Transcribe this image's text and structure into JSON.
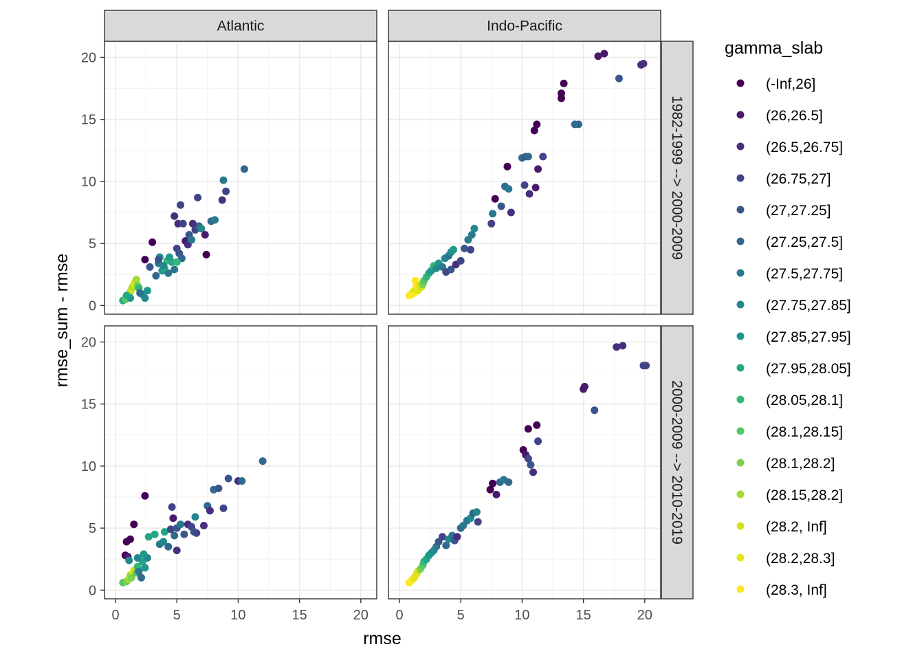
{
  "chart_data": {
    "type": "scatter",
    "xlabel": "rmse",
    "ylabel": "rmse_sum - rmse",
    "xlim": [
      -0.9,
      21.3
    ],
    "ylim": [
      -0.7,
      21.3
    ],
    "xticks": [
      0,
      5,
      10,
      15,
      20
    ],
    "yticks": [
      0,
      5,
      10,
      15,
      20
    ],
    "grid": true,
    "legend_position": "right",
    "column_facets": [
      "Atlantic",
      "Indo-Pacific"
    ],
    "row_facets": [
      "1982-1999 --> 2000-2009",
      "2000-2009 --> 2010-2019"
    ],
    "legend": {
      "title": "gamma_slab",
      "entries": [
        {
          "label": "(-Inf,26]",
          "color": "#440154"
        },
        {
          "label": "(26,26.5]",
          "color": "#481A6C"
        },
        {
          "label": "(26.5,26.75]",
          "color": "#472F7D"
        },
        {
          "label": "(26.75,27]",
          "color": "#414487"
        },
        {
          "label": "(27,27.25]",
          "color": "#39568C"
        },
        {
          "label": "(27.25,27.5]",
          "color": "#31688E"
        },
        {
          "label": "(27.5,27.75]",
          "color": "#2A788E"
        },
        {
          "label": "(27.75,27.85]",
          "color": "#23888E"
        },
        {
          "label": "(27.85,27.95]",
          "color": "#1F988B"
        },
        {
          "label": "(27.95,28.05]",
          "color": "#22A884"
        },
        {
          "label": "(28.05,28.1]",
          "color": "#35B779"
        },
        {
          "label": "(28.1,28.15]",
          "color": "#54C568"
        },
        {
          "label": "(28.1,28.2]",
          "color": "#7AD151"
        },
        {
          "label": "(28.15,28.2]",
          "color": "#A5DB36"
        },
        {
          "label": "(28.2, Inf]",
          "color": "#D2E21B"
        },
        {
          "label": "(28.2,28.3]",
          "color": "#E4E419"
        },
        {
          "label": "(28.3, Inf]",
          "color": "#FDE725"
        }
      ]
    },
    "panels": [
      {
        "column": "Atlantic",
        "row": "1982-1999 --> 2000-2009",
        "points": [
          [
            0.6,
            0.4,
            9
          ],
          [
            0.8,
            0.5,
            11
          ],
          [
            1.0,
            0.7,
            12
          ],
          [
            1.1,
            0.9,
            13
          ],
          [
            1.2,
            1.1,
            13
          ],
          [
            1.3,
            1.3,
            14
          ],
          [
            1.4,
            1.5,
            13
          ],
          [
            1.5,
            1.7,
            14
          ],
          [
            1.6,
            1.9,
            14
          ],
          [
            1.7,
            2.1,
            13
          ],
          [
            1.8,
            1.6,
            12
          ],
          [
            1.9,
            1.4,
            10
          ],
          [
            1.2,
            0.6,
            8
          ],
          [
            0.9,
            0.8,
            9
          ],
          [
            2.0,
            1.0,
            5
          ],
          [
            2.2,
            0.9,
            6
          ],
          [
            2.4,
            0.6,
            7
          ],
          [
            2.6,
            1.2,
            8
          ],
          [
            2.4,
            3.7,
            0
          ],
          [
            3.0,
            5.1,
            0
          ],
          [
            2.8,
            3.1,
            4
          ],
          [
            3.3,
            2.4,
            5
          ],
          [
            3.5,
            3.4,
            6
          ],
          [
            3.6,
            3.9,
            7
          ],
          [
            3.8,
            2.8,
            8
          ],
          [
            4.0,
            3.0,
            9
          ],
          [
            4.2,
            3.6,
            10
          ],
          [
            4.3,
            2.6,
            6
          ],
          [
            3.5,
            3.7,
            4
          ],
          [
            3.9,
            3.2,
            7
          ],
          [
            4.4,
            3.9,
            8
          ],
          [
            4.6,
            3.5,
            9
          ],
          [
            4.8,
            2.9,
            6
          ],
          [
            5.0,
            4.6,
            3
          ],
          [
            5.2,
            4.2,
            4
          ],
          [
            5.4,
            3.8,
            5
          ],
          [
            5.1,
            6.6,
            2
          ],
          [
            5.3,
            8.1,
            3
          ],
          [
            5.7,
            5.2,
            1
          ],
          [
            5.9,
            4.9,
            2
          ],
          [
            4.8,
            7.2,
            2
          ],
          [
            5.5,
            6.6,
            3
          ],
          [
            6.0,
            5.7,
            4
          ],
          [
            6.2,
            5.3,
            6
          ],
          [
            6.5,
            6.1,
            3
          ],
          [
            6.8,
            6.4,
            5
          ],
          [
            6.7,
            8.7,
            3
          ],
          [
            7.0,
            6.2,
            7
          ],
          [
            7.3,
            5.7,
            1
          ],
          [
            7.4,
            4.1,
            0
          ],
          [
            6.3,
            6.6,
            2
          ],
          [
            7.8,
            6.8,
            5
          ],
          [
            8.1,
            6.9,
            6
          ],
          [
            8.7,
            8.5,
            2
          ],
          [
            8.8,
            10.1,
            6
          ],
          [
            9.0,
            9.2,
            3
          ],
          [
            10.5,
            11.0,
            5
          ],
          [
            5.0,
            3.5,
            10
          ]
        ]
      },
      {
        "column": "Indo-Pacific",
        "row": "1982-1999 --> 2000-2009",
        "points": [
          [
            0.8,
            0.8,
            16
          ],
          [
            1.0,
            0.9,
            16
          ],
          [
            1.1,
            1.1,
            15
          ],
          [
            1.2,
            1.0,
            16
          ],
          [
            1.3,
            1.3,
            14
          ],
          [
            1.4,
            1.6,
            16
          ],
          [
            1.5,
            1.2,
            15
          ],
          [
            1.3,
            2.0,
            16
          ],
          [
            1.6,
            1.7,
            15
          ],
          [
            1.8,
            1.5,
            14
          ],
          [
            1.9,
            1.7,
            12
          ],
          [
            2.0,
            2.0,
            11
          ],
          [
            2.2,
            2.3,
            10
          ],
          [
            2.4,
            2.6,
            9
          ],
          [
            2.6,
            2.8,
            8
          ],
          [
            2.8,
            3.2,
            10
          ],
          [
            3.0,
            3.0,
            7
          ],
          [
            3.2,
            3.4,
            8
          ],
          [
            3.5,
            3.1,
            6
          ],
          [
            3.7,
            3.8,
            7
          ],
          [
            4.0,
            4.0,
            6
          ],
          [
            4.2,
            4.3,
            7
          ],
          [
            4.4,
            4.5,
            8
          ],
          [
            3.8,
            2.7,
            3
          ],
          [
            4.2,
            2.9,
            4
          ],
          [
            4.6,
            3.3,
            2
          ],
          [
            5.0,
            3.6,
            3
          ],
          [
            5.3,
            4.6,
            4
          ],
          [
            5.8,
            4.5,
            3
          ],
          [
            5.6,
            5.3,
            6
          ],
          [
            5.9,
            5.7,
            6
          ],
          [
            6.1,
            6.2,
            7
          ],
          [
            7.5,
            6.6,
            3
          ],
          [
            7.6,
            7.4,
            6
          ],
          [
            7.8,
            8.6,
            0
          ],
          [
            8.3,
            8.0,
            4
          ],
          [
            8.6,
            9.6,
            5
          ],
          [
            8.9,
            9.4,
            6
          ],
          [
            9.1,
            7.5,
            2
          ],
          [
            8.8,
            11.2,
            0
          ],
          [
            10.0,
            11.9,
            5
          ],
          [
            10.3,
            12.0,
            4
          ],
          [
            10.5,
            12.0,
            5
          ],
          [
            10.2,
            9.7,
            3
          ],
          [
            10.6,
            9.0,
            2
          ],
          [
            11.1,
            9.5,
            1
          ],
          [
            11.3,
            11.0,
            1
          ],
          [
            11.0,
            14.1,
            0
          ],
          [
            11.2,
            14.6,
            0
          ],
          [
            11.7,
            12.0,
            3
          ],
          [
            13.2,
            16.7,
            0
          ],
          [
            13.2,
            17.1,
            0
          ],
          [
            13.4,
            17.9,
            0
          ],
          [
            14.3,
            14.6,
            5
          ],
          [
            14.6,
            14.6,
            5
          ],
          [
            16.2,
            20.1,
            1
          ],
          [
            16.7,
            20.3,
            1
          ],
          [
            17.9,
            18.3,
            4
          ],
          [
            19.7,
            19.4,
            2
          ],
          [
            19.9,
            19.5,
            2
          ]
        ]
      },
      {
        "column": "Atlantic",
        "row": "2000-2009 --> 2010-2019",
        "points": [
          [
            0.6,
            0.6,
            11
          ],
          [
            0.9,
            0.7,
            12
          ],
          [
            1.1,
            0.9,
            13
          ],
          [
            1.2,
            1.2,
            13
          ],
          [
            1.4,
            1.3,
            14
          ],
          [
            1.5,
            1.6,
            14
          ],
          [
            1.3,
            1.0,
            12
          ],
          [
            1.7,
            1.4,
            11
          ],
          [
            1.8,
            1.9,
            10
          ],
          [
            2.2,
            2.3,
            9
          ],
          [
            2.4,
            1.8,
            8
          ],
          [
            2.6,
            2.6,
            7
          ],
          [
            1.9,
            1.5,
            6
          ],
          [
            2.1,
            1.0,
            5
          ],
          [
            0.8,
            2.8,
            0
          ],
          [
            1.0,
            2.7,
            1
          ],
          [
            0.9,
            3.9,
            0
          ],
          [
            1.2,
            4.1,
            0
          ],
          [
            1.5,
            5.3,
            0
          ],
          [
            1.1,
            2.4,
            7
          ],
          [
            1.8,
            2.6,
            7
          ],
          [
            2.3,
            2.9,
            8
          ],
          [
            2.4,
            7.6,
            0
          ],
          [
            2.7,
            4.3,
            9
          ],
          [
            3.2,
            4.5,
            9
          ],
          [
            3.6,
            3.7,
            6
          ],
          [
            3.9,
            3.9,
            7
          ],
          [
            4.0,
            4.7,
            9
          ],
          [
            4.3,
            3.5,
            5
          ],
          [
            4.5,
            4.9,
            3
          ],
          [
            4.7,
            5.8,
            1
          ],
          [
            4.8,
            4.4,
            5
          ],
          [
            5.0,
            3.2,
            2
          ],
          [
            5.0,
            5.0,
            4
          ],
          [
            5.3,
            5.3,
            6
          ],
          [
            5.6,
            4.5,
            4
          ],
          [
            5.9,
            5.3,
            2
          ],
          [
            6.2,
            5.1,
            3
          ],
          [
            6.4,
            4.7,
            4
          ],
          [
            6.5,
            5.9,
            7
          ],
          [
            6.6,
            4.6,
            3
          ],
          [
            7.2,
            5.2,
            2
          ],
          [
            7.5,
            6.8,
            5
          ],
          [
            7.7,
            6.4,
            2
          ],
          [
            8.0,
            8.1,
            5
          ],
          [
            8.4,
            8.2,
            4
          ],
          [
            8.8,
            6.6,
            3
          ],
          [
            9.2,
            9.0,
            4
          ],
          [
            10.0,
            8.8,
            2
          ],
          [
            10.3,
            8.8,
            5
          ],
          [
            12.0,
            10.4,
            5
          ],
          [
            4.6,
            6.7,
            3
          ]
        ]
      },
      {
        "column": "Indo-Pacific",
        "row": "2000-2009 --> 2010-2019",
        "points": [
          [
            0.8,
            0.6,
            16
          ],
          [
            1.0,
            0.8,
            16
          ],
          [
            1.2,
            1.0,
            15
          ],
          [
            1.4,
            1.3,
            15
          ],
          [
            1.5,
            1.5,
            14
          ],
          [
            1.7,
            1.7,
            12
          ],
          [
            1.9,
            2.0,
            11
          ],
          [
            2.0,
            2.3,
            10
          ],
          [
            2.2,
            2.5,
            9
          ],
          [
            2.4,
            2.8,
            8
          ],
          [
            2.6,
            3.0,
            8
          ],
          [
            2.8,
            3.2,
            7
          ],
          [
            3.0,
            3.5,
            6
          ],
          [
            3.2,
            3.9,
            4
          ],
          [
            3.5,
            4.3,
            3
          ],
          [
            3.8,
            3.6,
            5
          ],
          [
            4.0,
            4.1,
            7
          ],
          [
            4.3,
            4.4,
            6
          ],
          [
            4.5,
            4.0,
            4
          ],
          [
            4.7,
            4.3,
            2
          ],
          [
            5.0,
            5.0,
            5
          ],
          [
            5.2,
            5.2,
            6
          ],
          [
            5.5,
            5.6,
            6
          ],
          [
            5.8,
            5.8,
            7
          ],
          [
            6.0,
            6.2,
            5
          ],
          [
            6.3,
            6.3,
            7
          ],
          [
            6.4,
            5.5,
            3
          ],
          [
            7.4,
            8.1,
            0
          ],
          [
            7.6,
            8.6,
            0
          ],
          [
            7.9,
            7.7,
            1
          ],
          [
            8.2,
            8.7,
            5
          ],
          [
            8.5,
            8.9,
            6
          ],
          [
            8.9,
            8.7,
            5
          ],
          [
            10.1,
            11.3,
            0
          ],
          [
            10.3,
            10.9,
            1
          ],
          [
            10.5,
            10.6,
            3
          ],
          [
            10.7,
            10.1,
            4
          ],
          [
            10.9,
            9.5,
            2
          ],
          [
            10.5,
            13.0,
            0
          ],
          [
            11.2,
            13.3,
            0
          ],
          [
            11.3,
            12.0,
            3
          ],
          [
            15.0,
            16.2,
            1
          ],
          [
            15.1,
            16.4,
            1
          ],
          [
            15.9,
            14.5,
            4
          ],
          [
            17.7,
            19.6,
            2
          ],
          [
            18.2,
            19.7,
            2
          ],
          [
            19.9,
            18.1,
            3
          ],
          [
            20.1,
            18.1,
            3
          ]
        ]
      }
    ]
  }
}
